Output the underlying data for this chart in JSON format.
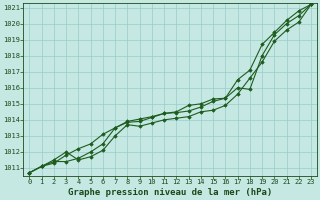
{
  "title": "Graphe pression niveau de la mer (hPa)",
  "x": [
    0,
    1,
    2,
    3,
    4,
    5,
    6,
    7,
    8,
    9,
    10,
    11,
    12,
    13,
    14,
    15,
    16,
    17,
    18,
    19,
    20,
    21,
    22,
    23
  ],
  "line1": [
    1010.7,
    1011.1,
    1011.5,
    1012.0,
    1011.5,
    1011.7,
    1012.1,
    1013.0,
    1013.7,
    1013.6,
    1013.8,
    1014.0,
    1014.1,
    1014.2,
    1014.5,
    1014.6,
    1014.9,
    1015.6,
    1016.6,
    1017.6,
    1018.9,
    1019.6,
    1020.1,
    1021.2
  ],
  "line2": [
    1010.7,
    1011.1,
    1011.4,
    1011.4,
    1011.6,
    1012.0,
    1012.5,
    1013.5,
    1013.85,
    1013.9,
    1014.15,
    1014.4,
    1014.5,
    1014.9,
    1015.0,
    1015.3,
    1015.35,
    1016.0,
    1015.9,
    1018.0,
    1019.3,
    1020.0,
    1020.5,
    1021.2
  ],
  "line3": [
    1010.7,
    1011.1,
    1011.3,
    1011.8,
    1012.2,
    1012.5,
    1013.1,
    1013.5,
    1013.9,
    1014.05,
    1014.2,
    1014.4,
    1014.45,
    1014.55,
    1014.8,
    1015.15,
    1015.35,
    1016.5,
    1017.1,
    1018.7,
    1019.45,
    1020.2,
    1020.8,
    1021.2
  ],
  "ylim_min": 1010.5,
  "ylim_max": 1021.3,
  "yticks": [
    1011,
    1012,
    1013,
    1014,
    1015,
    1016,
    1017,
    1018,
    1019,
    1020,
    1021
  ],
  "xlim_min": -0.5,
  "xlim_max": 23.5,
  "xticks": [
    0,
    1,
    2,
    3,
    4,
    5,
    6,
    7,
    8,
    9,
    10,
    11,
    12,
    13,
    14,
    15,
    16,
    17,
    18,
    19,
    20,
    21,
    22,
    23
  ],
  "line_color": "#1e5c1e",
  "marker_color": "#1e5c1e",
  "bg_color": "#c5e8e3",
  "grid_color": "#99cccc",
  "label_color": "#1a4a1a",
  "title_color": "#1a4a1a",
  "title_fontsize": 6.5,
  "tick_fontsize": 5.0,
  "marker": "D",
  "marker_size": 1.8,
  "line_width": 0.8
}
